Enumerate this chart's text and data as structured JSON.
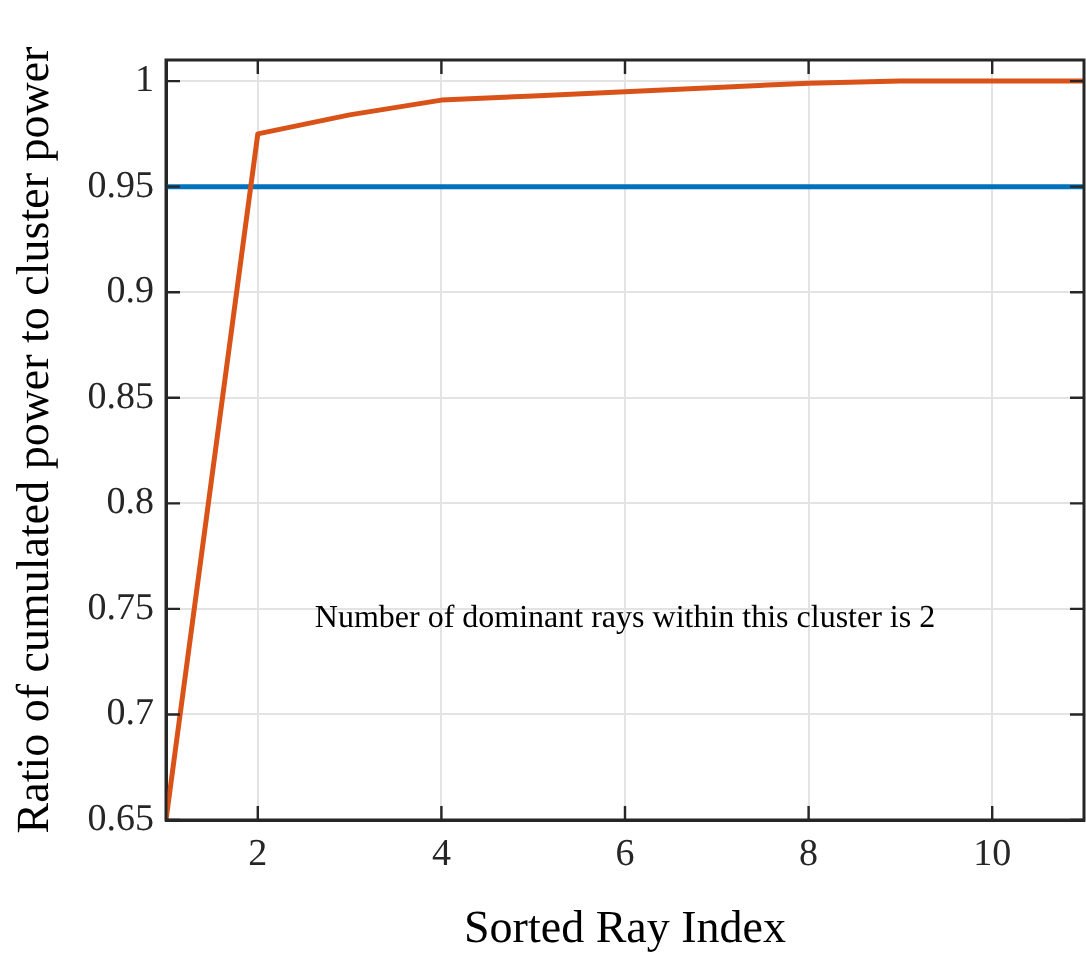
{
  "chart_data": {
    "type": "line",
    "xlabel": "Sorted Ray Index",
    "ylabel": "Ratio of cumulated power to cluster power",
    "x": [
      1,
      2,
      3,
      4,
      5,
      6,
      7,
      8,
      9,
      10,
      11
    ],
    "series": [
      {
        "color": "#d95319",
        "values": [
          0.65,
          0.975,
          0.984,
          0.991,
          0.993,
          0.995,
          0.997,
          0.999,
          1.0,
          1.0,
          1.0
        ]
      }
    ],
    "xlim": [
      1,
      11
    ],
    "xticks": [
      2,
      4,
      6,
      8,
      10
    ],
    "ylim": [
      0.65,
      1.01
    ],
    "yticks": [
      0.65,
      0.7,
      0.75,
      0.8,
      0.85,
      0.9,
      0.95,
      1
    ],
    "ref_lines": [
      {
        "axis": "y",
        "value": 0.95,
        "color": "#0072bd"
      }
    ],
    "annotations": [
      "Number of dominant rays within this cluster is 2"
    ],
    "grid": true,
    "legend": false,
    "marker": "none",
    "line_style": "solid"
  }
}
